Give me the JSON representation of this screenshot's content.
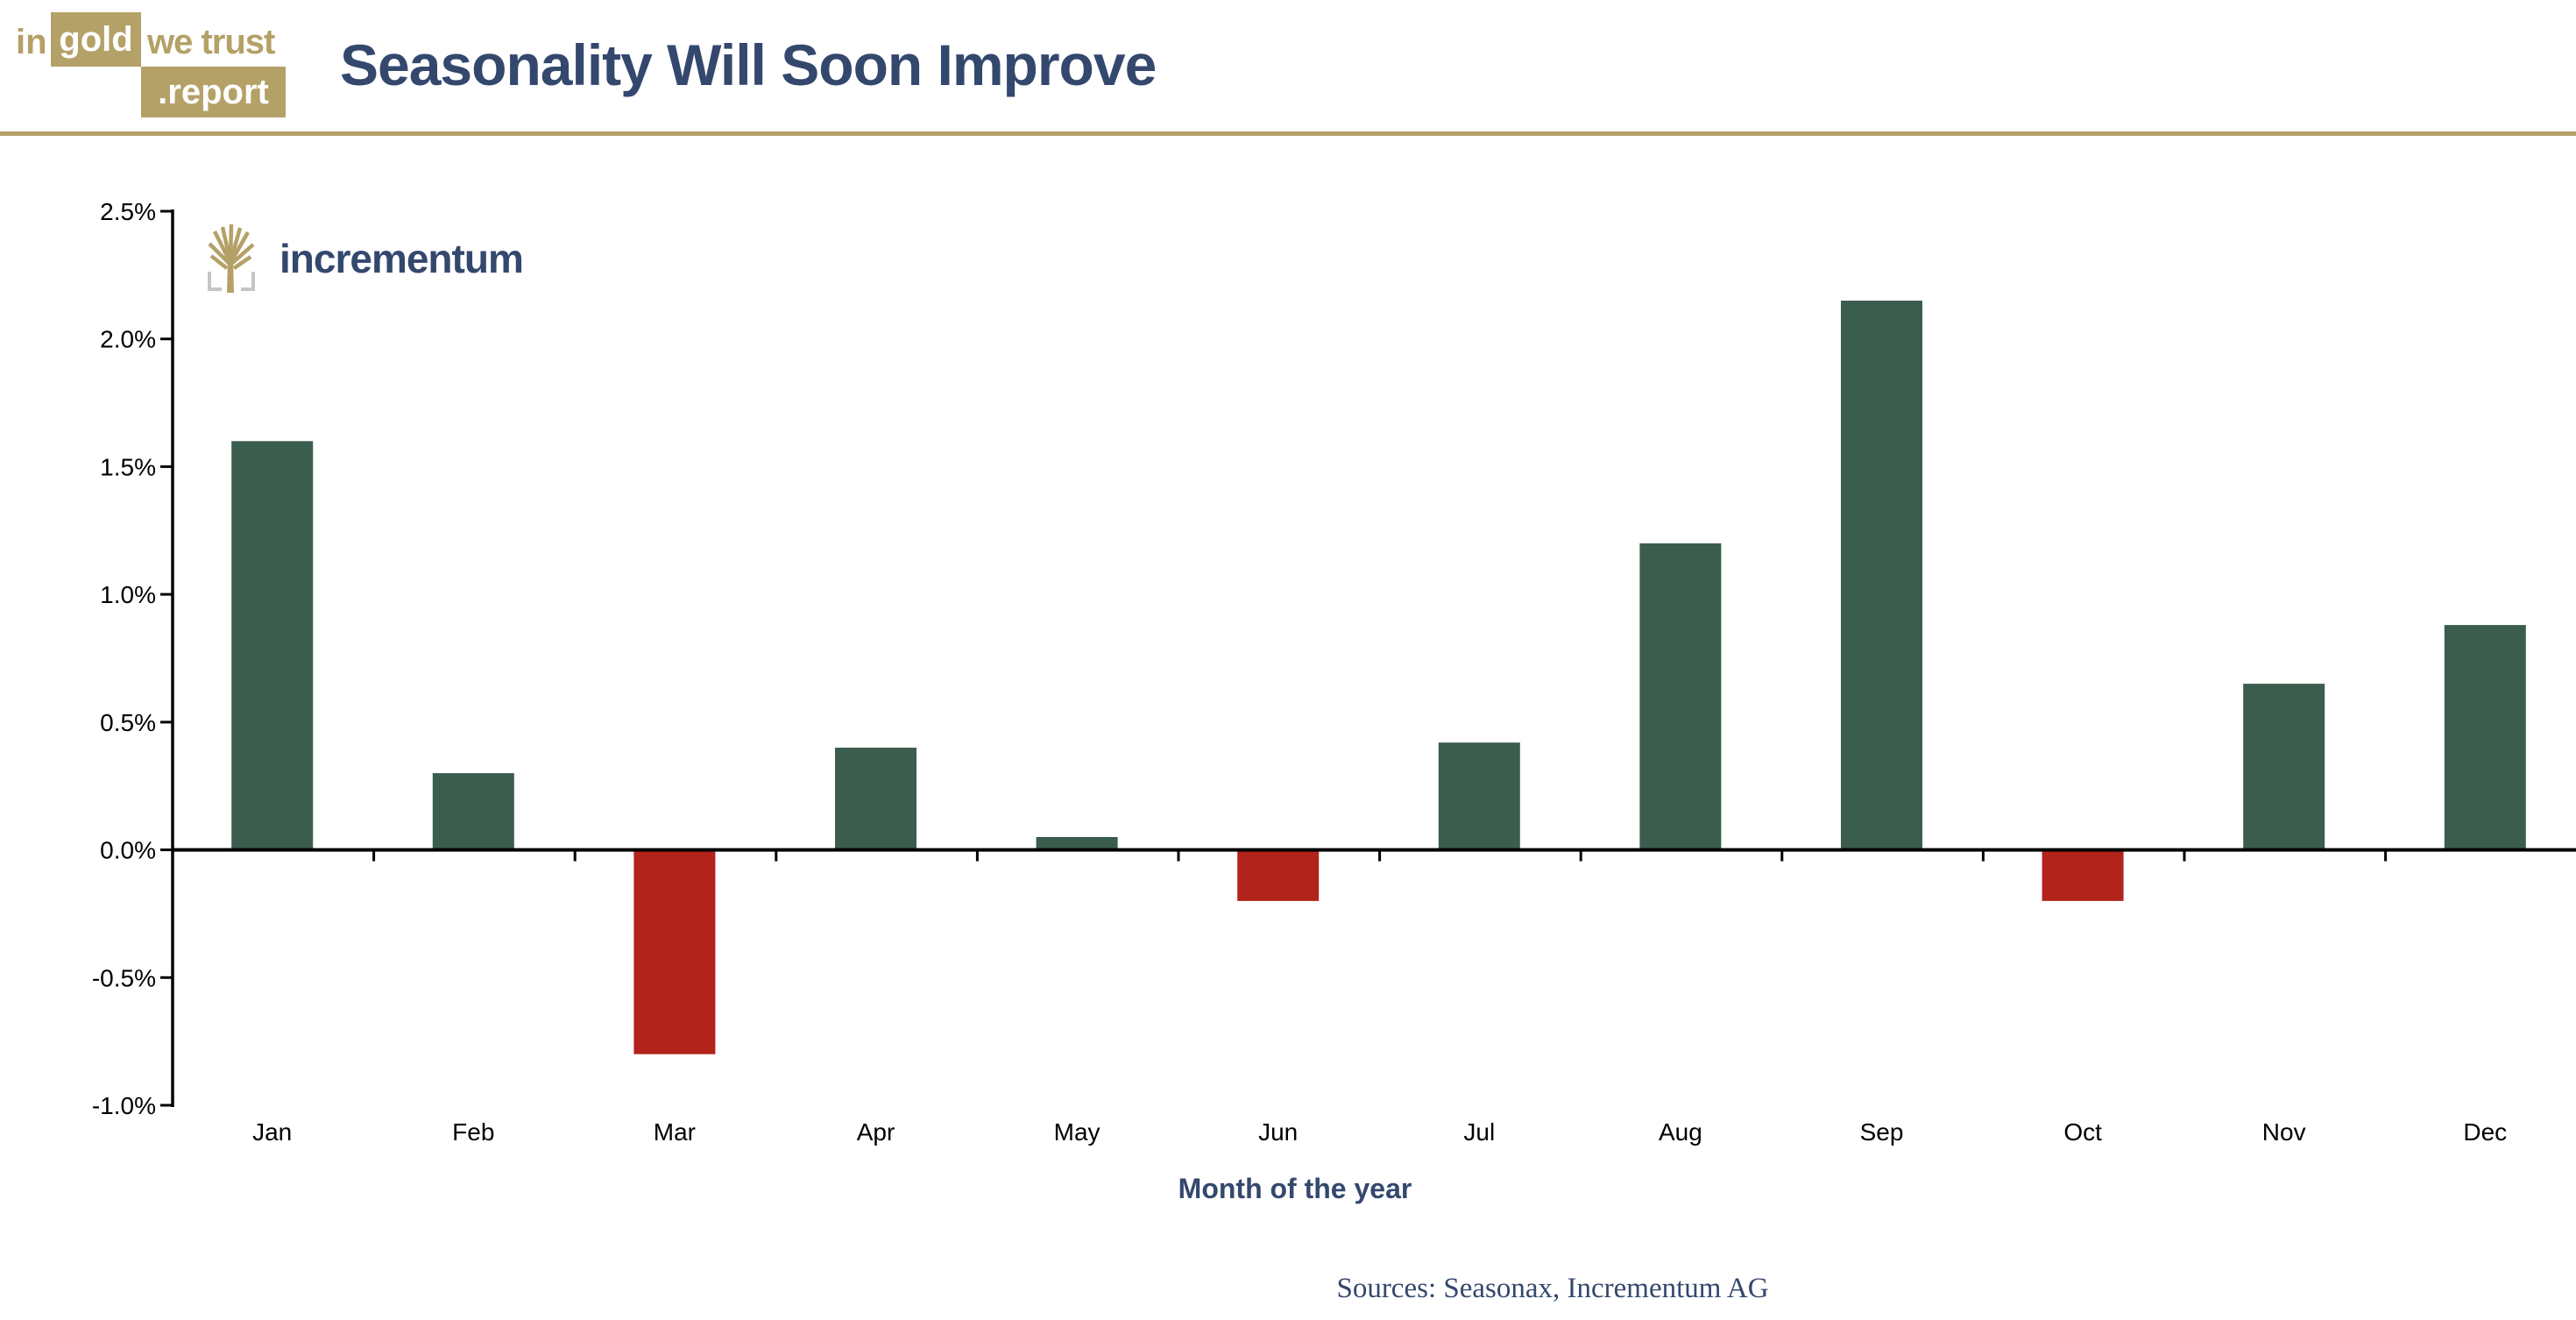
{
  "header": {
    "logo": {
      "word_in": "in",
      "word_gold": "gold",
      "word_we_trust": "we trust",
      "word_report": ".report"
    },
    "title": "Seasonality Will Soon Improve"
  },
  "brand": {
    "wordmark": "incrementum"
  },
  "chart_data": {
    "type": "bar",
    "title": "Seasonality Will Soon Improve",
    "categories": [
      "Jan",
      "Feb",
      "Mar",
      "Apr",
      "May",
      "Jun",
      "Jul",
      "Aug",
      "Sep",
      "Oct",
      "Nov",
      "Dec"
    ],
    "values": [
      1.6,
      0.3,
      -0.8,
      0.4,
      0.05,
      -0.2,
      0.42,
      1.2,
      2.15,
      -0.2,
      0.65,
      0.88
    ],
    "unit": "%",
    "xlabel": "Month of the year",
    "ylabel": "",
    "ylim": [
      -1.0,
      2.5
    ],
    "ytick_step": 0.5,
    "ytick_labels": [
      "2.5%",
      "2.0%",
      "1.5%",
      "1.0%",
      "0.5%",
      "0.0%",
      "-0.5%",
      "-1.0%"
    ],
    "grid": false,
    "legend": null,
    "positive_color": "#3B5D4E",
    "negative_color": "#B2231B"
  },
  "footer": {
    "sources": "Sources: Seasonax, Incrementum AG"
  },
  "colors": {
    "gold": "#B4A167",
    "navy": "#34486E",
    "green": "#3B5D4E",
    "red": "#B2231B",
    "axis_black": "#000000",
    "bracket_gray": "#C5C5C5"
  }
}
